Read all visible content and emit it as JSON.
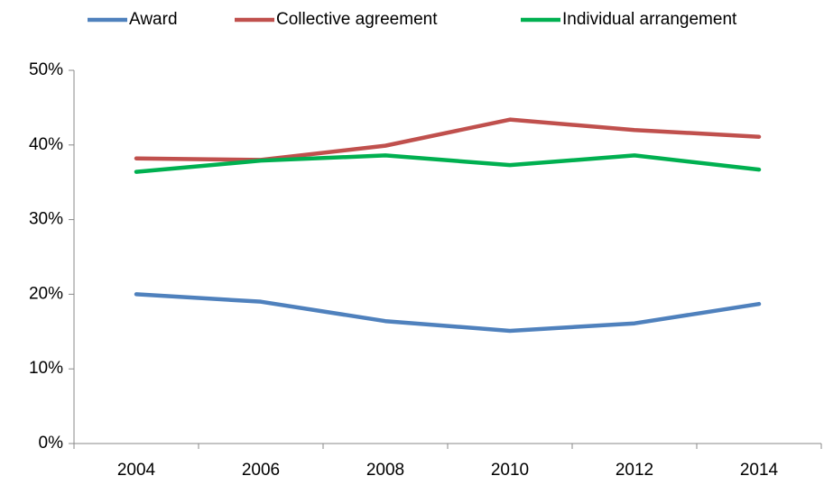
{
  "chart_data": {
    "type": "line",
    "categories": [
      "2004",
      "2006",
      "2008",
      "2010",
      "2012",
      "2014"
    ],
    "series": [
      {
        "name": "Award",
        "color": "#4f81bd",
        "values": [
          20.0,
          19.0,
          16.4,
          15.1,
          16.1,
          18.7
        ]
      },
      {
        "name": "Collective agreement",
        "color": "#c0504d",
        "values": [
          38.2,
          38.0,
          39.9,
          43.4,
          42.0,
          41.1
        ]
      },
      {
        "name": "Individual arrangement",
        "color": "#00b050",
        "values": [
          36.4,
          37.9,
          38.6,
          37.3,
          38.6,
          36.7
        ]
      }
    ],
    "ylim": [
      0,
      50
    ],
    "yticks": [
      {
        "value": 0,
        "label": "0%"
      },
      {
        "value": 10,
        "label": "10%"
      },
      {
        "value": 20,
        "label": "20%"
      },
      {
        "value": 30,
        "label": "30%"
      },
      {
        "value": 40,
        "label": "40%"
      },
      {
        "value": 50,
        "label": "50%"
      }
    ],
    "grid": false,
    "legend": "top"
  }
}
